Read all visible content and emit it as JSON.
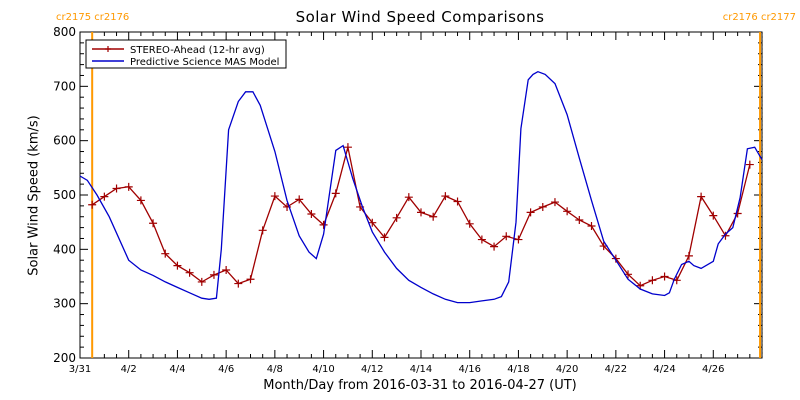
{
  "chart_data": {
    "type": "line",
    "title": "Solar Wind Speed Comparisons",
    "xlabel": "Month/Day from 2016-03-31 to 2016-04-27 (UT)",
    "ylabel": "Solar Wind Speed (km/s)",
    "xlim": [
      0,
      28
    ],
    "ylim": [
      200,
      800
    ],
    "yticks": [
      200,
      300,
      400,
      500,
      600,
      700,
      800
    ],
    "xticks": [
      {
        "x": 0,
        "label": "3/31"
      },
      {
        "x": 2,
        "label": "4/2"
      },
      {
        "x": 4,
        "label": "4/4"
      },
      {
        "x": 6,
        "label": "4/6"
      },
      {
        "x": 8,
        "label": "4/8"
      },
      {
        "x": 10,
        "label": "4/10"
      },
      {
        "x": 12,
        "label": "4/12"
      },
      {
        "x": 14,
        "label": "4/14"
      },
      {
        "x": 16,
        "label": "4/16"
      },
      {
        "x": 18,
        "label": "4/18"
      },
      {
        "x": 20,
        "label": "4/20"
      },
      {
        "x": 22,
        "label": "4/22"
      },
      {
        "x": 24,
        "label": "4/24"
      },
      {
        "x": 26,
        "label": "4/26"
      }
    ],
    "carrington_markers": [
      {
        "x": 0.5,
        "color": "#ff9900"
      },
      {
        "x": 27.92,
        "color": "#ff9900"
      }
    ],
    "corner_labels": {
      "left": "cr2175 cr2176",
      "right": "cr2176 cr2177",
      "color": "#ff9900"
    },
    "legend_position": "top-left",
    "series": [
      {
        "name": "STEREO-Ahead (12-hr avg)",
        "color": "#a00000",
        "marker": "plus",
        "x": [
          0.5,
          1.0,
          1.5,
          2.0,
          2.5,
          3.0,
          3.5,
          4.0,
          4.5,
          5.0,
          5.5,
          6.0,
          6.5,
          7.0,
          7.5,
          8.0,
          8.5,
          9.0,
          9.5,
          10.0,
          10.5,
          11.0,
          11.5,
          12.0,
          12.5,
          13.0,
          13.5,
          14.0,
          14.5,
          15.0,
          15.5,
          16.0,
          16.5,
          17.0,
          17.5,
          18.0,
          18.5,
          19.0,
          19.5,
          20.0,
          20.5,
          21.0,
          21.5,
          22.0,
          22.5,
          23.0,
          23.5,
          24.0,
          24.5,
          25.0,
          25.5,
          26.0,
          26.5,
          27.0,
          27.5
        ],
        "y": [
          482,
          497,
          512,
          515,
          490,
          448,
          392,
          370,
          357,
          340,
          353,
          362,
          337,
          345,
          435,
          498,
          478,
          492,
          465,
          445,
          503,
          588,
          478,
          449,
          422,
          458,
          496,
          468,
          460,
          498,
          488,
          447,
          418,
          405,
          424,
          418,
          468,
          478,
          487,
          470,
          454,
          443,
          406,
          383,
          354,
          333,
          343,
          350,
          343,
          388,
          497,
          462,
          425,
          466,
          556
        ]
      },
      {
        "name": "Predictive Science MAS Model",
        "color": "#0000cc",
        "marker": "none",
        "x": [
          0.0,
          0.3,
          0.7,
          1.2,
          2.0,
          2.5,
          3.0,
          3.5,
          4.0,
          4.5,
          5.0,
          5.3,
          5.6,
          5.8,
          6.1,
          6.5,
          6.8,
          7.1,
          7.4,
          8.0,
          8.5,
          9.0,
          9.4,
          9.7,
          10.0,
          10.5,
          10.8,
          11.2,
          11.6,
          12.0,
          12.5,
          13.0,
          13.5,
          14.0,
          14.5,
          15.0,
          15.5,
          16.0,
          16.5,
          17.0,
          17.3,
          17.6,
          17.9,
          18.1,
          18.4,
          18.6,
          18.8,
          19.1,
          19.5,
          20.0,
          20.5,
          21.0,
          21.5,
          22.0,
          22.5,
          23.0,
          23.5,
          24.0,
          24.2,
          24.4,
          24.7,
          25.0,
          25.2,
          25.5,
          26.0,
          26.2,
          26.5,
          26.8,
          27.1,
          27.4,
          27.7,
          28.0
        ],
        "y": [
          535,
          527,
          500,
          460,
          380,
          362,
          352,
          340,
          330,
          320,
          310,
          308,
          310,
          400,
          620,
          672,
          690,
          690,
          665,
          580,
          490,
          425,
          395,
          383,
          428,
          582,
          591,
          530,
          478,
          432,
          395,
          365,
          343,
          330,
          318,
          308,
          302,
          302,
          305,
          308,
          313,
          340,
          450,
          622,
          712,
          722,
          727,
          722,
          705,
          648,
          568,
          490,
          415,
          380,
          345,
          327,
          318,
          315,
          320,
          345,
          372,
          378,
          370,
          365,
          378,
          410,
          428,
          440,
          495,
          585,
          588,
          565
        ]
      }
    ]
  }
}
